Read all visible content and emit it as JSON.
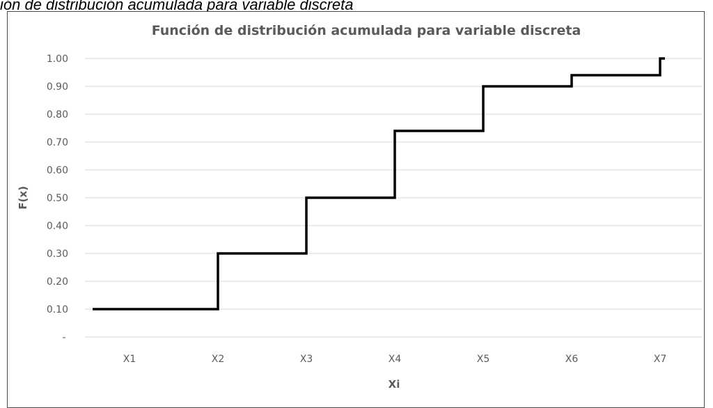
{
  "caption": "ión de distribución acumulada para variable discreta",
  "chart_data": {
    "type": "line",
    "step": true,
    "title": "Función de distribución acumulada para variable discreta",
    "xlabel": "Xi",
    "ylabel": "F(x)",
    "categories": [
      "X1",
      "X2",
      "X3",
      "X4",
      "X5",
      "X6",
      "X7"
    ],
    "values": [
      0.1,
      0.3,
      0.5,
      0.74,
      0.9,
      0.94,
      1.0
    ],
    "ylim": [
      0,
      1.0
    ],
    "ytick_labels": [
      "-",
      "0.10",
      "0.20",
      "0.30",
      "0.40",
      "0.50",
      "0.60",
      "0.70",
      "0.80",
      "0.90",
      "1.00"
    ],
    "grid": true,
    "line_color": "#000000",
    "grid_color": "#d9d9d9",
    "text_color": "#5a5a5a"
  }
}
